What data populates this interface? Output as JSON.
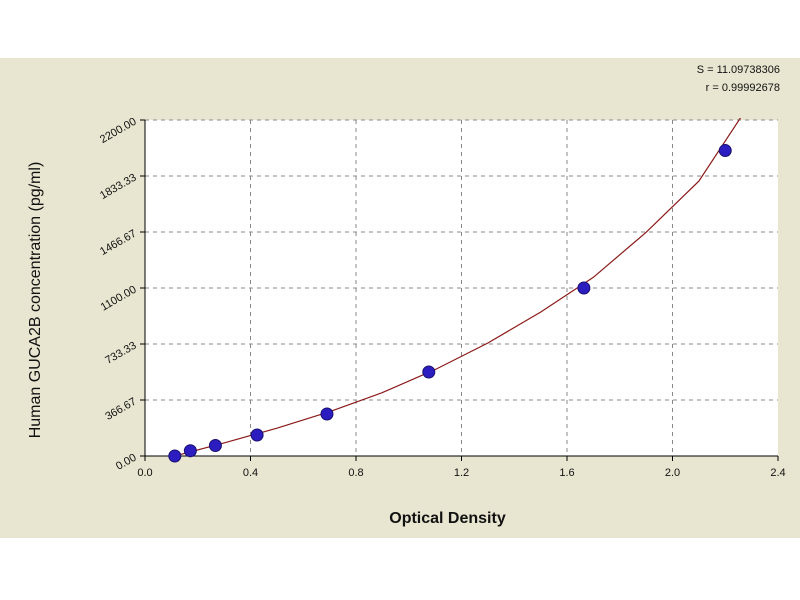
{
  "stats": {
    "s_text": "S = 11.09738306",
    "r_text": "r = 0.99992678"
  },
  "colors": {
    "background": "#e8e6d1",
    "plot_area": "#ffffff",
    "curve": "#8b1a1a",
    "points": "#2b1dbf",
    "grid": "#888888"
  },
  "chart_data": {
    "type": "scatter",
    "title": "",
    "xlabel": "Optical Density",
    "ylabel": "Human GUCA2B concentration (pg/ml)",
    "xlim": [
      0.0,
      2.4
    ],
    "ylim": [
      0.0,
      2200.0
    ],
    "x_ticks": [
      "0.0",
      "0.4",
      "0.8",
      "1.2",
      "1.6",
      "2.0",
      "2.4"
    ],
    "y_ticks": [
      "0.00",
      "366.67",
      "733.33",
      "1100.00",
      "1466.67",
      "1833.33",
      "2200.00"
    ],
    "grid": true,
    "series": [
      {
        "kind": "points",
        "x": [
          0.113,
          0.172,
          0.267,
          0.425,
          0.69,
          1.076,
          1.664,
          2.2
        ],
        "y": [
          0,
          34.4,
          68.8,
          137.5,
          275,
          550,
          1100,
          2000
        ]
      },
      {
        "kind": "fitted-curve",
        "x": [
          0.113,
          0.3,
          0.5,
          0.7,
          0.9,
          1.1,
          1.3,
          1.5,
          1.7,
          1.9,
          2.1,
          2.26
        ],
        "y": [
          0,
          86,
          182,
          290,
          415,
          566,
          740,
          942,
          1170,
          1465,
          1800,
          2220
        ]
      }
    ]
  }
}
